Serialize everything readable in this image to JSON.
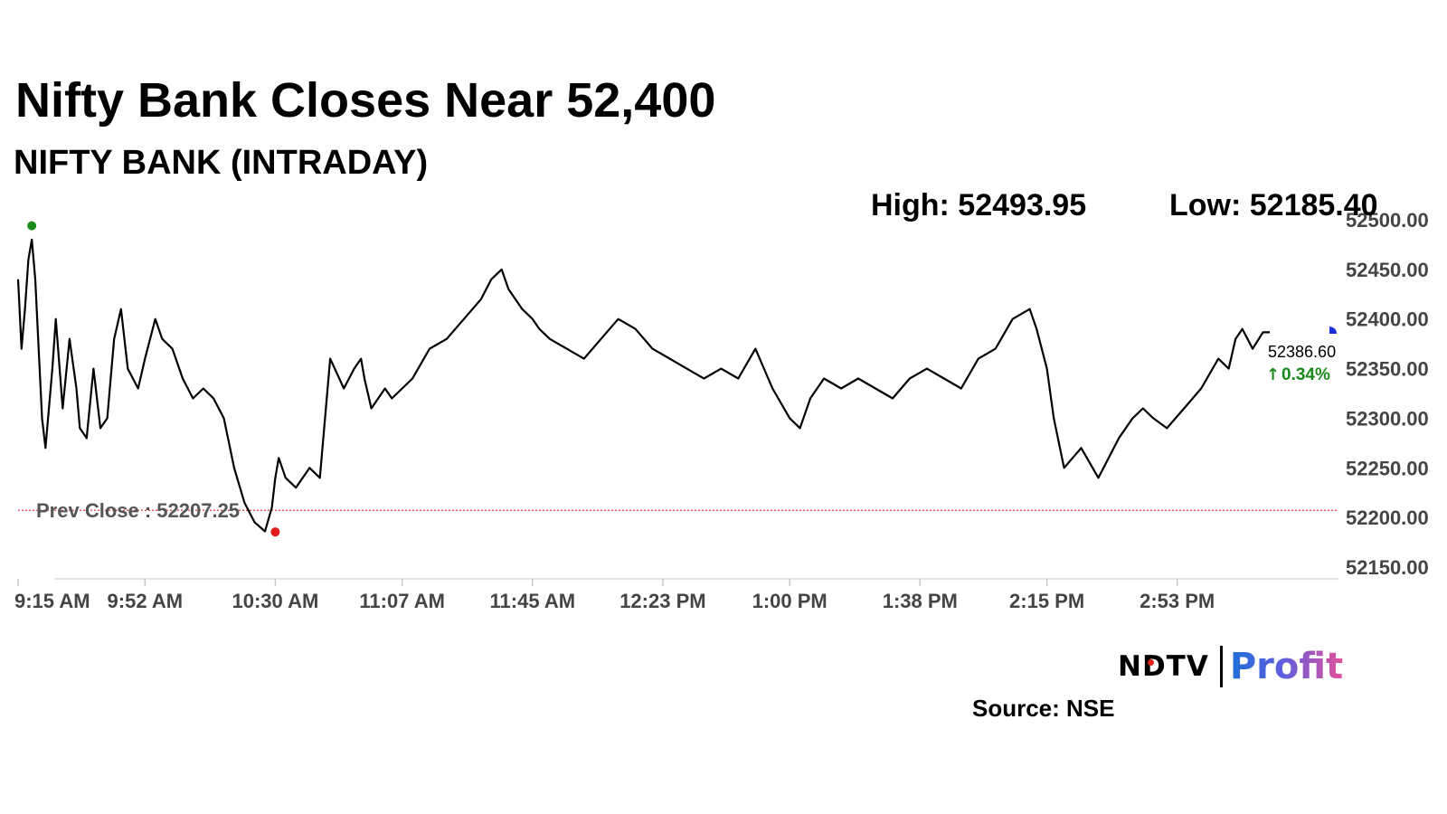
{
  "headline": "Nifty Bank Closes Near 52,400",
  "subtitle": "NIFTY BANK (INTRADAY)",
  "stats": {
    "high": "High: 52493.95",
    "low": "Low: 52185.40"
  },
  "brand": {
    "ndtv": "NDTV",
    "profit": "Profit"
  },
  "source": "Source: NSE",
  "chart_data": {
    "type": "line",
    "title": "NIFTY BANK (INTRADAY)",
    "xlabel": "",
    "ylabel": "",
    "ylim": [
      52150,
      52500
    ],
    "yticks": [
      52500,
      52450,
      52400,
      52350,
      52300,
      52250,
      52200,
      52150
    ],
    "ytick_labels": [
      "52500.00",
      "52450.00",
      "52400.00",
      "52350.00",
      "52300.00",
      "52250.00",
      "52200.00",
      "52150.00"
    ],
    "xlim": [
      "09:15",
      "15:30"
    ],
    "xticks": [
      "09:15",
      "09:52",
      "10:30",
      "11:07",
      "11:45",
      "12:23",
      "13:00",
      "13:38",
      "14:15",
      "14:53"
    ],
    "xtick_labels": [
      "9:15 AM",
      "9:52 AM",
      "10:30 AM",
      "11:07 AM",
      "11:45 AM",
      "12:23 PM",
      "1:00 PM",
      "1:38 PM",
      "2:15 PM",
      "2:53 PM"
    ],
    "grid": false,
    "prev_close": {
      "value": 52207.25,
      "label": "Prev Close : 52207.25",
      "color": "#d62728"
    },
    "high_point": {
      "time": "09:19",
      "value": 52493.95,
      "color": "#1a8a1a"
    },
    "low_point": {
      "time": "10:30",
      "value": 52185.4,
      "color": "#e31b1b"
    },
    "last": {
      "value_label": "52386.60",
      "change_label": "0.34%",
      "change_color": "#1a8a1a"
    },
    "series": [
      {
        "color": "#000000",
        "x": [
          "09:15",
          "09:16",
          "09:17",
          "09:18",
          "09:19",
          "09:20",
          "09:22",
          "09:23",
          "09:25",
          "09:26",
          "09:28",
          "09:30",
          "09:32",
          "09:33",
          "09:35",
          "09:37",
          "09:39",
          "09:41",
          "09:43",
          "09:45",
          "09:47",
          "09:50",
          "09:52",
          "09:55",
          "09:57",
          "10:00",
          "10:03",
          "10:06",
          "10:09",
          "10:12",
          "10:15",
          "10:18",
          "10:21",
          "10:24",
          "10:27",
          "10:29",
          "10:30",
          "10:31",
          "10:33",
          "10:36",
          "10:40",
          "10:43",
          "10:46",
          "10:50",
          "10:53",
          "10:55",
          "10:56",
          "10:58",
          "11:00",
          "11:02",
          "11:04",
          "11:07",
          "11:10",
          "11:15",
          "11:20",
          "11:25",
          "11:30",
          "11:33",
          "11:36",
          "11:38",
          "11:42",
          "11:45",
          "11:47",
          "11:50",
          "11:55",
          "12:00",
          "12:05",
          "12:10",
          "12:15",
          "12:20",
          "12:25",
          "12:30",
          "12:35",
          "12:40",
          "12:45",
          "12:50",
          "12:55",
          "13:00",
          "13:03",
          "13:06",
          "13:10",
          "13:15",
          "13:20",
          "13:25",
          "13:30",
          "13:35",
          "13:40",
          "13:45",
          "13:50",
          "13:55",
          "14:00",
          "14:05",
          "14:10",
          "14:12",
          "14:15",
          "14:17",
          "14:20",
          "14:25",
          "14:30",
          "14:33",
          "14:36",
          "14:40",
          "14:43",
          "14:46",
          "14:50",
          "14:55",
          "15:00",
          "15:05",
          "15:08",
          "15:10",
          "15:12",
          "15:15",
          "15:18",
          "15:20"
        ],
        "values": [
          52440,
          52370,
          52410,
          52460,
          52480,
          52440,
          52300,
          52270,
          52350,
          52400,
          52310,
          52380,
          52330,
          52290,
          52280,
          52350,
          52290,
          52300,
          52380,
          52410,
          52350,
          52330,
          52360,
          52400,
          52380,
          52370,
          52340,
          52320,
          52330,
          52320,
          52300,
          52250,
          52215,
          52195,
          52186,
          52210,
          52240,
          52260,
          52240,
          52230,
          52250,
          52240,
          52360,
          52330,
          52350,
          52360,
          52340,
          52310,
          52320,
          52330,
          52320,
          52330,
          52340,
          52370,
          52380,
          52400,
          52420,
          52440,
          52450,
          52430,
          52410,
          52400,
          52390,
          52380,
          52370,
          52360,
          52380,
          52400,
          52390,
          52370,
          52360,
          52350,
          52340,
          52350,
          52340,
          52370,
          52330,
          52300,
          52290,
          52320,
          52340,
          52330,
          52340,
          52330,
          52320,
          52340,
          52350,
          52340,
          52330,
          52360,
          52370,
          52400,
          52410,
          52390,
          52350,
          52300,
          52250,
          52270,
          52240,
          52260,
          52280,
          52300,
          52310,
          52300,
          52290,
          52310,
          52330,
          52360,
          52350,
          52380,
          52390,
          52370,
          52386.6,
          52386.6
        ]
      }
    ]
  }
}
